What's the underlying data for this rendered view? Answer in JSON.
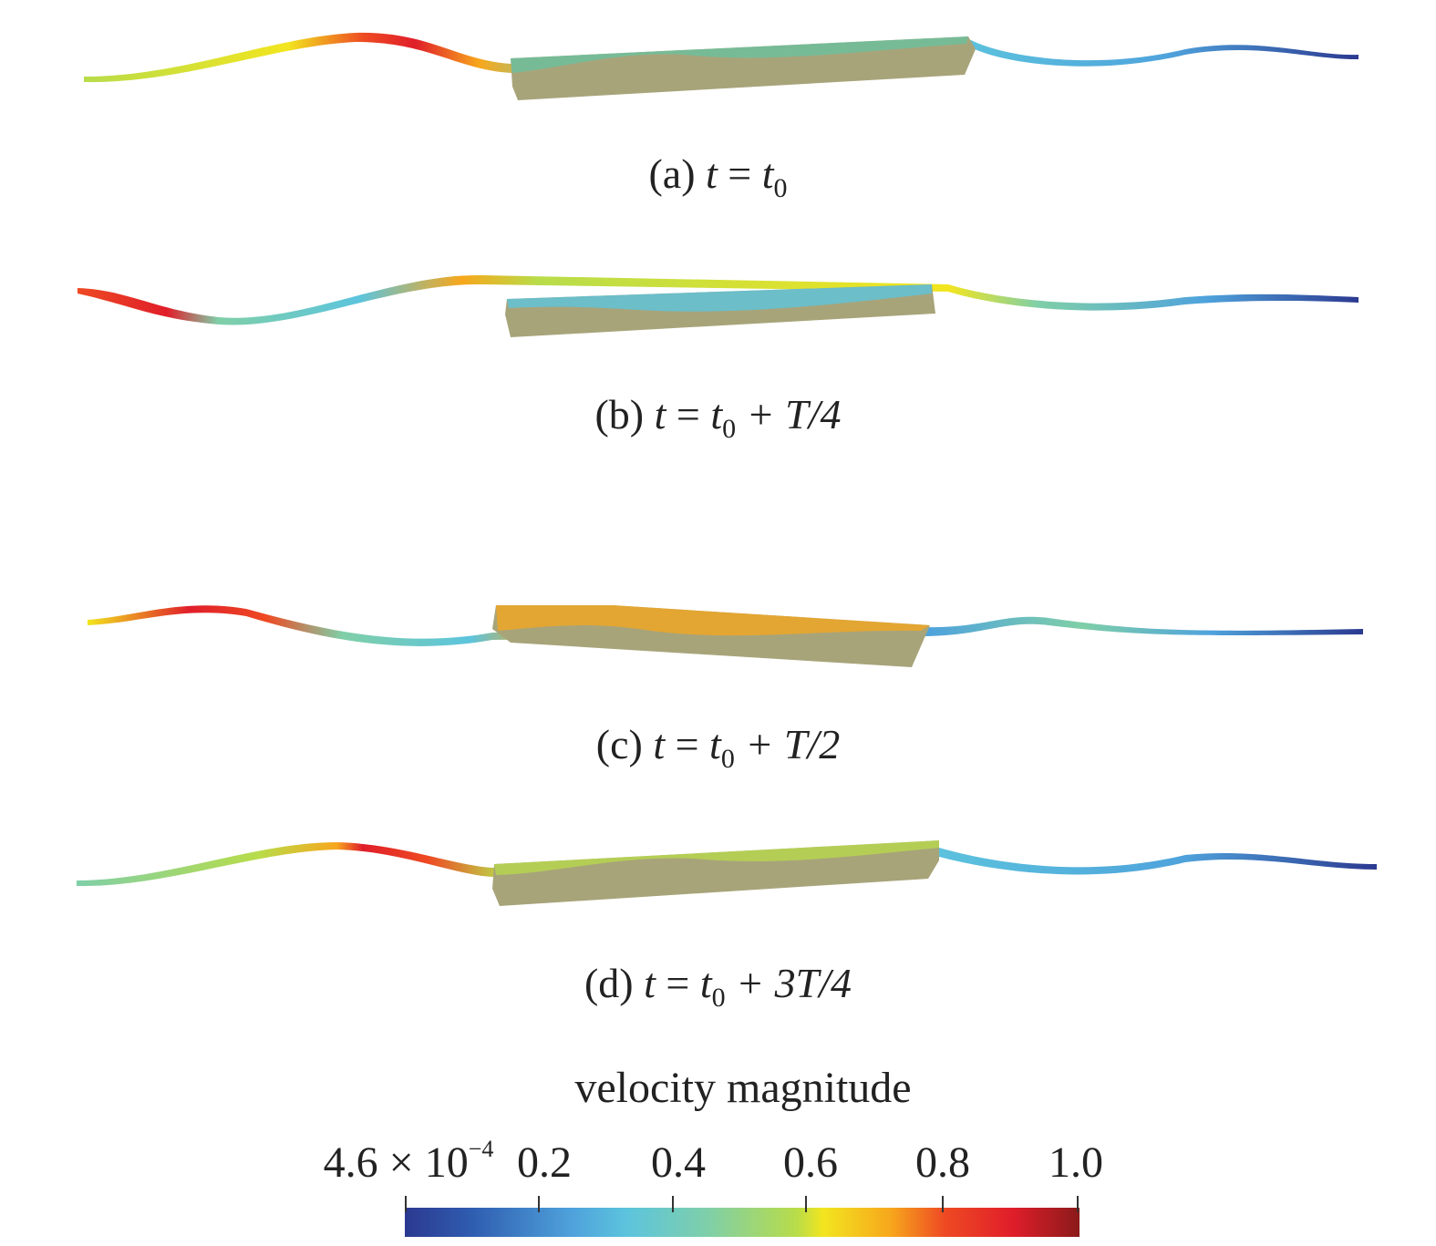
{
  "figure": {
    "panels": [
      {
        "id": "a",
        "caption": {
          "label": "(a)",
          "t": "t",
          "eq": "=",
          "t0": "t",
          "sub": "0",
          "rest": ""
        }
      },
      {
        "id": "b",
        "caption": {
          "label": "(b)",
          "t": "t",
          "eq": "=",
          "t0": "t",
          "sub": "0",
          "rest": "+ T/4"
        }
      },
      {
        "id": "c",
        "caption": {
          "label": "(c)",
          "t": "t",
          "eq": "=",
          "t0": "t",
          "sub": "0",
          "rest": "+ T/2"
        }
      },
      {
        "id": "d",
        "caption": {
          "label": "(d)",
          "t": "t",
          "eq": "=",
          "t0": "t",
          "sub": "0",
          "rest": "+ 3T/4"
        }
      }
    ],
    "colorbar": {
      "title": "velocity magnitude",
      "min_label_mantissa": "4.6 × 10",
      "min_label_exp": "−4",
      "ticks": [
        "0.2",
        "0.4",
        "0.6",
        "0.8",
        "1.0"
      ],
      "colors": [
        "#2b3990",
        "#2f5db0",
        "#4fa3dc",
        "#5cc4dd",
        "#7fcfa8",
        "#b8dc4a",
        "#f2e51f",
        "#f7a71c",
        "#ee4a23",
        "#e01e2a",
        "#8b1a1a"
      ]
    },
    "body_color": "#a8a47a"
  }
}
